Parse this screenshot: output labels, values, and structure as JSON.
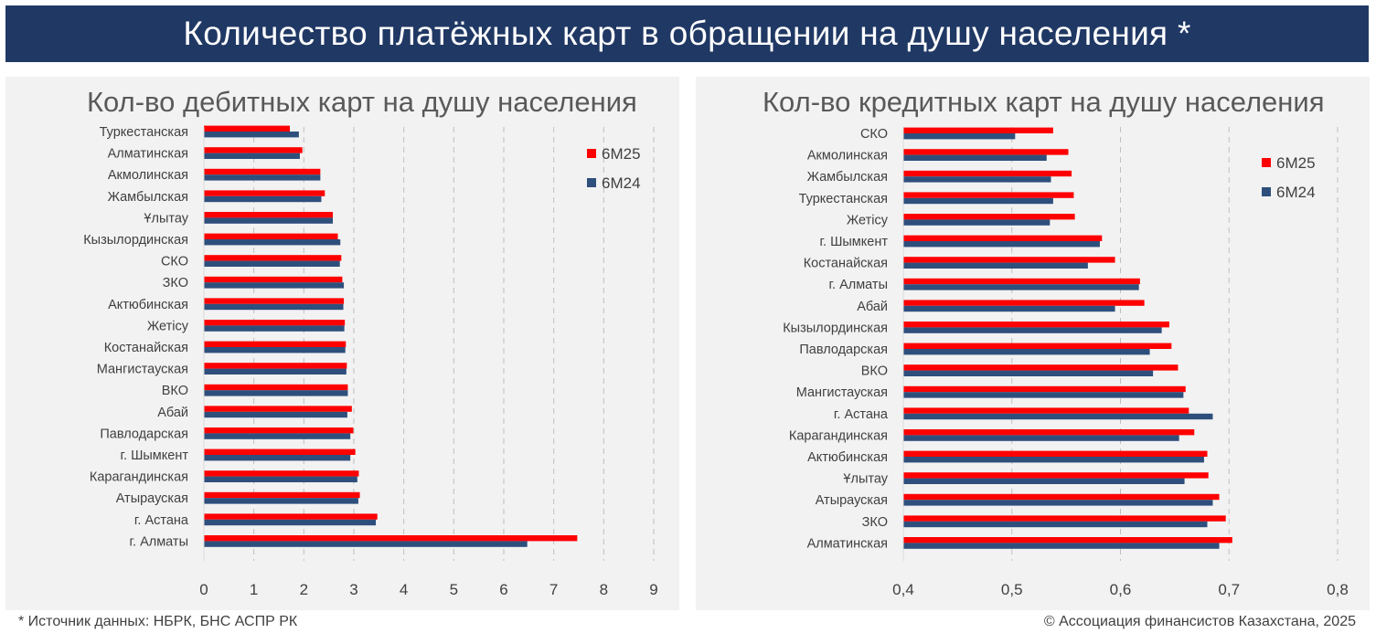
{
  "header": {
    "title": "Количество платёжных карт в обращении на душу населения *"
  },
  "footer": {
    "source": "* Источник данных: НБРК, БНС АСПР РК",
    "copyright": "© Ассоциация финансистов Казахстана, 2025"
  },
  "colors": {
    "banner": "#203864",
    "series_6M25": "#ff0000",
    "series_6M24": "#2e4f7c",
    "panel_bg": "#f2f2f2",
    "grid": "#bfbfbf",
    "text": "#404040",
    "title_text": "#595959"
  },
  "chart_data": [
    {
      "type": "bar",
      "orientation": "horizontal",
      "title": "Кол-во дебитных карт на душу населения",
      "xlim": [
        0,
        9
      ],
      "xticks": [
        "0",
        "1",
        "2",
        "3",
        "4",
        "5",
        "6",
        "7",
        "8",
        "9"
      ],
      "grid": "vertical dashed",
      "legend_position": "top-right",
      "categories": [
        "Туркестанская",
        "Алматинская",
        "Акмолинская",
        "Жамбылская",
        "Ұлытау",
        "Кызылординская",
        "СКО",
        "ЗКО",
        "Актюбинская",
        "Жетісу",
        "Костанайская",
        "Мангистауская",
        "ВКО",
        "Абай",
        "Павлодарская",
        "г. Шымкент",
        "Карагандинская",
        "Атырауская",
        "г. Астана",
        "г. Алматы"
      ],
      "series": [
        {
          "name": "6М25",
          "color": "#ff0000",
          "values": [
            1.72,
            1.97,
            2.33,
            2.42,
            2.58,
            2.68,
            2.75,
            2.77,
            2.8,
            2.82,
            2.84,
            2.86,
            2.88,
            2.96,
            2.99,
            3.03,
            3.1,
            3.12,
            3.47,
            7.47
          ]
        },
        {
          "name": "6М24",
          "color": "#2e4f7c",
          "values": [
            1.9,
            1.92,
            2.33,
            2.35,
            2.58,
            2.73,
            2.72,
            2.8,
            2.79,
            2.81,
            2.83,
            2.85,
            2.88,
            2.87,
            2.93,
            2.93,
            3.07,
            3.09,
            3.44,
            6.47
          ]
        }
      ]
    },
    {
      "type": "bar",
      "orientation": "horizontal",
      "title": "Кол-во кредитных карт на душу населения",
      "xlim": [
        0.4,
        0.8
      ],
      "xticks": [
        "0,4",
        "0,5",
        "0,6",
        "0,7",
        "0,8"
      ],
      "grid": "vertical dashed",
      "legend_position": "top-right",
      "categories": [
        "СКО",
        "Акмолинская",
        "Жамбылская",
        "Туркестанская",
        "Жетісу",
        "г. Шымкент",
        "Костанайская",
        "г. Алматы",
        "Абай",
        "Кызылординская",
        "Павлодарская",
        "ВКО",
        "Мангистауская",
        "г. Астана",
        "Карагандинская",
        "Актюбинская",
        "Ұлытау",
        "Атырауская",
        "ЗКО",
        "Алматинская"
      ],
      "series": [
        {
          "name": "6М25",
          "color": "#ff0000",
          "values": [
            0.538,
            0.552,
            0.555,
            0.557,
            0.558,
            0.583,
            0.595,
            0.618,
            0.622,
            0.645,
            0.647,
            0.653,
            0.66,
            0.663,
            0.668,
            0.68,
            0.681,
            0.691,
            0.697,
            0.703
          ]
        },
        {
          "name": "6М24",
          "color": "#2e4f7c",
          "values": [
            0.503,
            0.532,
            0.536,
            0.538,
            0.535,
            0.581,
            0.57,
            0.617,
            0.595,
            0.638,
            0.627,
            0.63,
            0.658,
            0.685,
            0.654,
            0.677,
            0.659,
            0.685,
            0.68,
            0.691
          ]
        }
      ]
    }
  ]
}
